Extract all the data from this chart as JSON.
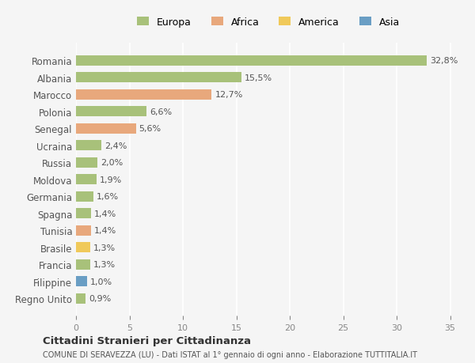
{
  "countries": [
    "Romania",
    "Albania",
    "Marocco",
    "Polonia",
    "Senegal",
    "Ucraina",
    "Russia",
    "Moldova",
    "Germania",
    "Spagna",
    "Tunisia",
    "Brasile",
    "Francia",
    "Filippine",
    "Regno Unito"
  ],
  "values": [
    32.8,
    15.5,
    12.7,
    6.6,
    5.6,
    2.4,
    2.0,
    1.9,
    1.6,
    1.4,
    1.4,
    1.3,
    1.3,
    1.0,
    0.9
  ],
  "labels": [
    "32,8%",
    "15,5%",
    "12,7%",
    "6,6%",
    "5,6%",
    "2,4%",
    "2,0%",
    "1,9%",
    "1,6%",
    "1,4%",
    "1,4%",
    "1,3%",
    "1,3%",
    "1,0%",
    "0,9%"
  ],
  "continents": [
    "Europa",
    "Europa",
    "Africa",
    "Europa",
    "Africa",
    "Europa",
    "Europa",
    "Europa",
    "Europa",
    "Europa",
    "Africa",
    "America",
    "Europa",
    "Asia",
    "Europa"
  ],
  "colors": {
    "Europa": "#a8c17a",
    "Africa": "#e8a87c",
    "America": "#f0c95a",
    "Asia": "#6a9ec4"
  },
  "legend_entries": [
    "Europa",
    "Africa",
    "America",
    "Asia"
  ],
  "legend_colors": [
    "#a8c17a",
    "#e8a87c",
    "#f0c95a",
    "#6a9ec4"
  ],
  "xlim": [
    0,
    36
  ],
  "xticks": [
    0,
    5,
    10,
    15,
    20,
    25,
    30,
    35
  ],
  "title": "Cittadini Stranieri per Cittadinanza",
  "subtitle": "COMUNE DI SERAVEZZA (LU) - Dati ISTAT al 1° gennaio di ogni anno - Elaborazione TUTTITALIA.IT",
  "background_color": "#f5f5f5",
  "grid_color": "#ffffff",
  "bar_height": 0.6
}
